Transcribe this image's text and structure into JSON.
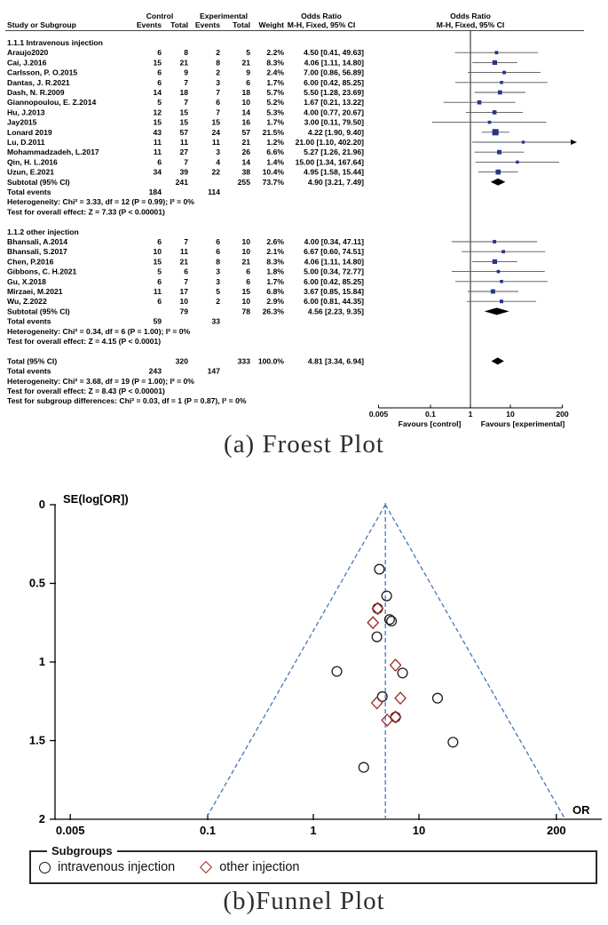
{
  "captions": {
    "forest": "(a) Froest Plot",
    "funnel": "(b)Funnel Plot"
  },
  "chart_data": [
    {
      "type": "forest",
      "header": {
        "group_control": "Control",
        "group_experimental": "Experimental",
        "col_study": "Study or Subgroup",
        "col_events": "Events",
        "col_total": "Total",
        "col_weight": "Weight",
        "col_or_title": "Odds Ratio",
        "col_method": "M-H, Fixed, 95% CI",
        "plot_title": "Odds Ratio",
        "plot_method": "M-H, Fixed, 95% CI"
      },
      "axis": {
        "ticks": [
          0.005,
          0.1,
          1,
          10,
          200
        ],
        "xmin": 0.005,
        "xmax": 200,
        "scale": "log",
        "favours_left": "Favours [control]",
        "favours_right": "Favours [experimental]"
      },
      "style": {
        "marker_color": "#26358c",
        "ci_color": "#555555",
        "diamond_color": "#000000",
        "axis_color": "#000000"
      },
      "subgroups": [
        {
          "label": "1.1.1 Intravenous injection",
          "studies": [
            {
              "study": "Araujo2020",
              "c_events": 6,
              "c_total": 8,
              "e_events": 2,
              "e_total": 5,
              "weight": "2.2%",
              "or": 4.5,
              "lo": 0.41,
              "hi": 49.63
            },
            {
              "study": "Cai, J.2016",
              "c_events": 15,
              "c_total": 21,
              "e_events": 8,
              "e_total": 21,
              "weight": "8.3%",
              "or": 4.06,
              "lo": 1.11,
              "hi": 14.8
            },
            {
              "study": "Carlsson, P. O.2015",
              "c_events": 6,
              "c_total": 9,
              "e_events": 2,
              "e_total": 9,
              "weight": "2.4%",
              "or": 7.0,
              "lo": 0.86,
              "hi": 56.89
            },
            {
              "study": "Dantas, J. R.2021",
              "c_events": 6,
              "c_total": 7,
              "e_events": 3,
              "e_total": 6,
              "weight": "1.7%",
              "or": 6.0,
              "lo": 0.42,
              "hi": 85.25
            },
            {
              "study": "Dash, N. R.2009",
              "c_events": 14,
              "c_total": 18,
              "e_events": 7,
              "e_total": 18,
              "weight": "5.7%",
              "or": 5.5,
              "lo": 1.28,
              "hi": 23.69
            },
            {
              "study": "Giannopoulou, E. Z.2014",
              "c_events": 5,
              "c_total": 7,
              "e_events": 6,
              "e_total": 10,
              "weight": "5.2%",
              "or": 1.67,
              "lo": 0.21,
              "hi": 13.22
            },
            {
              "study": "Hu, J.2013",
              "c_events": 12,
              "c_total": 15,
              "e_events": 7,
              "e_total": 14,
              "weight": "5.3%",
              "or": 4.0,
              "lo": 0.77,
              "hi": 20.67
            },
            {
              "study": "Jay2015",
              "c_events": 15,
              "c_total": 15,
              "e_events": 15,
              "e_total": 16,
              "weight": "1.7%",
              "or": 3.0,
              "lo": 0.11,
              "hi": 79.5
            },
            {
              "study": "Lonard 2019",
              "c_events": 43,
              "c_total": 57,
              "e_events": 24,
              "e_total": 57,
              "weight": "21.5%",
              "or": 4.22,
              "lo": 1.9,
              "hi": 9.4
            },
            {
              "study": "Lu, D.2011",
              "c_events": 11,
              "c_total": 11,
              "e_events": 11,
              "e_total": 21,
              "weight": "1.2%",
              "or": 21.0,
              "lo": 1.1,
              "hi": 402.2
            },
            {
              "study": "Mohammadzadeh, L.2017",
              "c_events": 11,
              "c_total": 27,
              "e_events": 3,
              "e_total": 26,
              "weight": "6.6%",
              "or": 5.27,
              "lo": 1.26,
              "hi": 21.96
            },
            {
              "study": "Qin, H. L.2016",
              "c_events": 6,
              "c_total": 7,
              "e_events": 4,
              "e_total": 14,
              "weight": "1.4%",
              "or": 15.0,
              "lo": 1.34,
              "hi": 167.64
            },
            {
              "study": "Uzun, E.2021",
              "c_events": 34,
              "c_total": 39,
              "e_events": 22,
              "e_total": 38,
              "weight": "10.4%",
              "or": 4.95,
              "lo": 1.58,
              "hi": 15.44
            }
          ],
          "subtotal": {
            "label": "Subtotal (95% CI)",
            "c_total": 241,
            "e_total": 255,
            "weight": "73.7%",
            "or": 4.9,
            "lo": 3.21,
            "hi": 7.49
          },
          "total_events": {
            "label": "Total events",
            "control": 184,
            "experimental": 114
          },
          "heterogeneity": "Heterogeneity: Chi² = 3.33, df = 12 (P = 0.99); I² = 0%",
          "overall_effect": "Test for overall effect: Z = 7.33 (P < 0.00001)"
        },
        {
          "label": "1.1.2 other injection",
          "studies": [
            {
              "study": "Bhansali, A.2014",
              "c_events": 6,
              "c_total": 7,
              "e_events": 6,
              "e_total": 10,
              "weight": "2.6%",
              "or": 4.0,
              "lo": 0.34,
              "hi": 47.11
            },
            {
              "study": "Bhansali, S.2017",
              "c_events": 10,
              "c_total": 11,
              "e_events": 6,
              "e_total": 10,
              "weight": "2.1%",
              "or": 6.67,
              "lo": 0.6,
              "hi": 74.51
            },
            {
              "study": "Chen, P.2016",
              "c_events": 15,
              "c_total": 21,
              "e_events": 8,
              "e_total": 21,
              "weight": "8.3%",
              "or": 4.06,
              "lo": 1.11,
              "hi": 14.8
            },
            {
              "study": "Gibbons, C. H.2021",
              "c_events": 5,
              "c_total": 6,
              "e_events": 3,
              "e_total": 6,
              "weight": "1.8%",
              "or": 5.0,
              "lo": 0.34,
              "hi": 72.77
            },
            {
              "study": "Gu, X.2018",
              "c_events": 6,
              "c_total": 7,
              "e_events": 3,
              "e_total": 6,
              "weight": "1.7%",
              "or": 6.0,
              "lo": 0.42,
              "hi": 85.25
            },
            {
              "study": "Mirzaei, M.2021",
              "c_events": 11,
              "c_total": 17,
              "e_events": 5,
              "e_total": 15,
              "weight": "6.8%",
              "or": 3.67,
              "lo": 0.85,
              "hi": 15.84
            },
            {
              "study": "Wu, Z.2022",
              "c_events": 6,
              "c_total": 10,
              "e_events": 2,
              "e_total": 10,
              "weight": "2.9%",
              "or": 6.0,
              "lo": 0.81,
              "hi": 44.35
            }
          ],
          "subtotal": {
            "label": "Subtotal (95% CI)",
            "c_total": 79,
            "e_total": 78,
            "weight": "26.3%",
            "or": 4.56,
            "lo": 2.23,
            "hi": 9.35
          },
          "total_events": {
            "label": "Total events",
            "control": 59,
            "experimental": 33
          },
          "heterogeneity": "Heterogeneity: Chi² = 0.34, df = 6 (P = 1.00); I² = 0%",
          "overall_effect": "Test for overall effect: Z = 4.15 (P < 0.0001)"
        }
      ],
      "total": {
        "label": "Total (95% CI)",
        "c_total": 320,
        "e_total": 333,
        "weight": "100.0%",
        "or": 4.81,
        "lo": 3.34,
        "hi": 6.94
      },
      "total_events": {
        "label": "Total events",
        "control": 243,
        "experimental": 147
      },
      "footnotes": [
        "Heterogeneity: Chi² = 3.68, df = 19 (P = 1.00); I² = 0%",
        "Test for overall effect: Z = 8.43 (P < 0.00001)",
        "Test for subgroup differences: Chi² = 0.03, df = 1 (P = 0.87), I² = 0%"
      ]
    },
    {
      "type": "scatter",
      "ylabel": "SE(log[OR])",
      "xlabel": "OR",
      "x_ticks": [
        0.005,
        0.1,
        1,
        10,
        200
      ],
      "y_ticks": [
        0,
        0.5,
        1,
        1.5,
        2
      ],
      "y_range": [
        0,
        2
      ],
      "x_scale": "log",
      "apex_or": 4.81,
      "legend_title": "Subgroups",
      "style": {
        "guide_color": "#4576b5",
        "circle_color": "#1c1c1c",
        "diamond_color": "#9c2b24"
      },
      "series": [
        {
          "name": "intravenous injection",
          "marker": "circle",
          "points": [
            {
              "or": 4.5,
              "se": 1.22
            },
            {
              "or": 4.06,
              "se": 0.66
            },
            {
              "or": 7.0,
              "se": 1.07
            },
            {
              "or": 6.0,
              "se": 1.35
            },
            {
              "or": 5.5,
              "se": 0.74
            },
            {
              "or": 1.67,
              "se": 1.06
            },
            {
              "or": 4.0,
              "se": 0.84
            },
            {
              "or": 3.0,
              "se": 1.67
            },
            {
              "or": 4.22,
              "se": 0.41
            },
            {
              "or": 21.0,
              "se": 1.51
            },
            {
              "or": 5.27,
              "se": 0.73
            },
            {
              "or": 15.0,
              "se": 1.23
            },
            {
              "or": 4.95,
              "se": 0.58
            }
          ]
        },
        {
          "name": "other injection",
          "marker": "diamond",
          "points": [
            {
              "or": 4.0,
              "se": 1.26
            },
            {
              "or": 6.67,
              "se": 1.23
            },
            {
              "or": 4.06,
              "se": 0.66
            },
            {
              "or": 5.0,
              "se": 1.37
            },
            {
              "or": 6.0,
              "se": 1.35
            },
            {
              "or": 3.67,
              "se": 0.75
            },
            {
              "or": 6.0,
              "se": 1.02
            }
          ]
        }
      ]
    }
  ]
}
